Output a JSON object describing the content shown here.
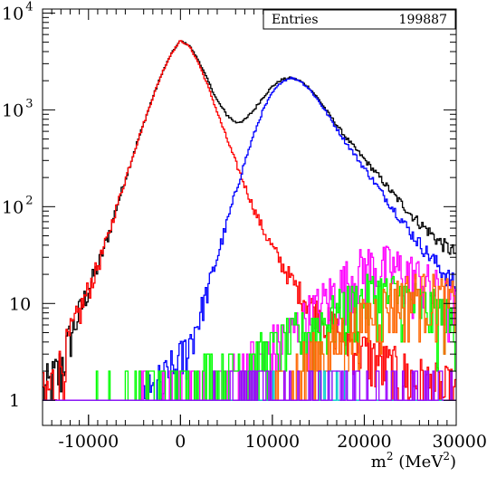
{
  "chart_data": {
    "type": "histogram",
    "title": "",
    "xlabel": "m",
    "xlabel_sup": "2",
    "xlabel_unit": " (MeV",
    "xlabel_unit_sup": "2",
    "xlabel_close": ")",
    "ylabel": "",
    "xlim": [
      -15000,
      30000
    ],
    "ylim": [
      0.55,
      11000
    ],
    "y_scale": "log",
    "grid": false,
    "x_ticks": [
      {
        "value": -10000,
        "label": "-10000"
      },
      {
        "value": 0,
        "label": "0"
      },
      {
        "value": 10000,
        "label": "10000"
      },
      {
        "value": 20000,
        "label": "20000"
      },
      {
        "value": 30000,
        "label": "30000"
      }
    ],
    "y_ticks": [
      {
        "value": 1,
        "base": "1",
        "exp": ""
      },
      {
        "value": 10,
        "base": "10",
        "exp": ""
      },
      {
        "value": 100,
        "base": "10",
        "exp": "2"
      },
      {
        "value": 1000,
        "base": "10",
        "exp": "3"
      },
      {
        "value": 10000,
        "base": "10",
        "exp": "4"
      }
    ],
    "stats_box": {
      "label": "Entries",
      "value": "199887"
    },
    "series": [
      {
        "color": "#000000",
        "shape": "total",
        "points": [
          [
            -15000,
            1.0
          ],
          [
            -14000,
            1.4
          ],
          [
            -13000,
            2.2
          ],
          [
            -12000,
            4.5
          ],
          [
            -11000,
            8
          ],
          [
            -10000,
            14
          ],
          [
            -9000,
            24
          ],
          [
            -8000,
            45
          ],
          [
            -7000,
            95
          ],
          [
            -6000,
            190
          ],
          [
            -5000,
            380
          ],
          [
            -4000,
            720
          ],
          [
            -3000,
            1350
          ],
          [
            -2000,
            2400
          ],
          [
            -1000,
            3800
          ],
          [
            0,
            5200
          ],
          [
            1000,
            4600
          ],
          [
            2000,
            3200
          ],
          [
            3000,
            2000
          ],
          [
            4000,
            1250
          ],
          [
            5000,
            900
          ],
          [
            6000,
            740
          ],
          [
            7000,
            780
          ],
          [
            8000,
            1000
          ],
          [
            9000,
            1350
          ],
          [
            10000,
            1750
          ],
          [
            11000,
            2050
          ],
          [
            12000,
            2150
          ],
          [
            13000,
            2000
          ],
          [
            14000,
            1700
          ],
          [
            15000,
            1300
          ],
          [
            16000,
            950
          ],
          [
            17000,
            700
          ],
          [
            18000,
            520
          ],
          [
            19000,
            400
          ],
          [
            20000,
            310
          ],
          [
            21000,
            240
          ],
          [
            22000,
            185
          ],
          [
            23000,
            140
          ],
          [
            24000,
            110
          ],
          [
            25000,
            85
          ],
          [
            26000,
            68
          ],
          [
            27000,
            56
          ],
          [
            28000,
            45
          ],
          [
            29000,
            38
          ],
          [
            30000,
            33
          ]
        ]
      },
      {
        "color": "#ff0000",
        "shape": "peak",
        "points": [
          [
            -15000,
            0.9
          ],
          [
            -14000,
            1.4
          ],
          [
            -13000,
            2.2
          ],
          [
            -12000,
            4.5
          ],
          [
            -11000,
            8
          ],
          [
            -10000,
            14
          ],
          [
            -9000,
            24
          ],
          [
            -8000,
            45
          ],
          [
            -7000,
            95
          ],
          [
            -6000,
            190
          ],
          [
            -5000,
            380
          ],
          [
            -4000,
            720
          ],
          [
            -3000,
            1350
          ],
          [
            -2000,
            2400
          ],
          [
            -1000,
            3800
          ],
          [
            0,
            5200
          ],
          [
            1000,
            4500
          ],
          [
            2000,
            3000
          ],
          [
            3000,
            1750
          ],
          [
            4000,
            950
          ],
          [
            5000,
            520
          ],
          [
            6000,
            290
          ],
          [
            7000,
            165
          ],
          [
            8000,
            95
          ],
          [
            9000,
            58
          ],
          [
            10000,
            38
          ],
          [
            11000,
            26
          ],
          [
            12000,
            18
          ],
          [
            13000,
            13
          ],
          [
            14000,
            10
          ],
          [
            15000,
            8
          ],
          [
            16000,
            6.5
          ],
          [
            17000,
            5.5
          ],
          [
            18000,
            4.5
          ],
          [
            19000,
            3.8
          ],
          [
            20000,
            3.2
          ],
          [
            21000,
            2.8
          ],
          [
            22000,
            2.4
          ],
          [
            23000,
            2.1
          ],
          [
            24000,
            1.9
          ],
          [
            25000,
            1.7
          ],
          [
            26000,
            1.5
          ],
          [
            27000,
            1.35
          ],
          [
            28000,
            1.2
          ],
          [
            29000,
            1.1
          ],
          [
            30000,
            1.0
          ]
        ]
      },
      {
        "color": "#0000ff",
        "shape": "peak",
        "points": [
          [
            -4000,
            0.7
          ],
          [
            -3000,
            1.0
          ],
          [
            -2000,
            1.3
          ],
          [
            -1000,
            1.8
          ],
          [
            0,
            2.5
          ],
          [
            1000,
            4
          ],
          [
            2000,
            7
          ],
          [
            3000,
            14
          ],
          [
            4000,
            30
          ],
          [
            5000,
            65
          ],
          [
            6000,
            140
          ],
          [
            7000,
            290
          ],
          [
            8000,
            560
          ],
          [
            9000,
            1000
          ],
          [
            10000,
            1500
          ],
          [
            11000,
            1950
          ],
          [
            12000,
            2150
          ],
          [
            13000,
            2000
          ],
          [
            14000,
            1650
          ],
          [
            15000,
            1250
          ],
          [
            16000,
            900
          ],
          [
            17000,
            640
          ],
          [
            18000,
            460
          ],
          [
            19000,
            340
          ],
          [
            20000,
            250
          ],
          [
            21000,
            185
          ],
          [
            22000,
            135
          ],
          [
            23000,
            100
          ],
          [
            24000,
            75
          ],
          [
            25000,
            55
          ],
          [
            26000,
            42
          ],
          [
            27000,
            32
          ],
          [
            28000,
            25
          ],
          [
            29000,
            19
          ],
          [
            30000,
            15
          ]
        ]
      },
      {
        "color": "#ff00ff",
        "shape": "noise",
        "points": [
          [
            -15000,
            0.8
          ],
          [
            -11000,
            0.9
          ],
          [
            -7000,
            1.0
          ],
          [
            -3000,
            1.1
          ],
          [
            1000,
            1.3
          ],
          [
            5000,
            1.8
          ],
          [
            9000,
            3.0
          ],
          [
            12000,
            5
          ],
          [
            15000,
            9
          ],
          [
            17000,
            14
          ],
          [
            19000,
            20
          ],
          [
            20000,
            24
          ],
          [
            22000,
            24
          ],
          [
            24000,
            22
          ],
          [
            26000,
            18
          ],
          [
            28000,
            13
          ],
          [
            30000,
            9
          ]
        ]
      },
      {
        "color": "#00ff00",
        "shape": "noise",
        "points": [
          [
            -15000,
            0.8
          ],
          [
            -10000,
            1.0
          ],
          [
            -5000,
            1.3
          ],
          [
            0,
            1.6
          ],
          [
            5000,
            2.2
          ],
          [
            10000,
            3.5
          ],
          [
            14000,
            5.5
          ],
          [
            18000,
            9
          ],
          [
            21000,
            13
          ],
          [
            24000,
            12
          ],
          [
            27000,
            9
          ],
          [
            30000,
            6
          ]
        ]
      },
      {
        "color": "#ff6600",
        "shape": "noise",
        "points": [
          [
            5000,
            0.7
          ],
          [
            8000,
            1.0
          ],
          [
            11000,
            1.6
          ],
          [
            14000,
            2.6
          ],
          [
            17000,
            4.2
          ],
          [
            20000,
            7
          ],
          [
            23000,
            11
          ],
          [
            26000,
            13
          ],
          [
            28000,
            12
          ],
          [
            30000,
            10
          ]
        ]
      },
      {
        "color": "#00cccc",
        "shape": "noise",
        "points": [
          [
            -15000,
            0.8
          ],
          [
            -10000,
            0.8
          ],
          [
            -5000,
            0.9
          ],
          [
            0,
            0.9
          ],
          [
            5000,
            1.0
          ],
          [
            10000,
            1.1
          ],
          [
            15000,
            1.2
          ],
          [
            20000,
            1.1
          ],
          [
            25000,
            1.0
          ],
          [
            30000,
            0.9
          ]
        ]
      },
      {
        "color": "#9900ff",
        "shape": "noise",
        "points": [
          [
            -15000,
            0.8
          ],
          [
            -10000,
            0.9
          ],
          [
            -5000,
            1.0
          ],
          [
            0,
            1.0
          ],
          [
            5000,
            1.2
          ],
          [
            10000,
            1.3
          ],
          [
            15000,
            1.4
          ],
          [
            20000,
            1.3
          ],
          [
            25000,
            1.2
          ],
          [
            30000,
            1.1
          ]
        ]
      }
    ]
  }
}
